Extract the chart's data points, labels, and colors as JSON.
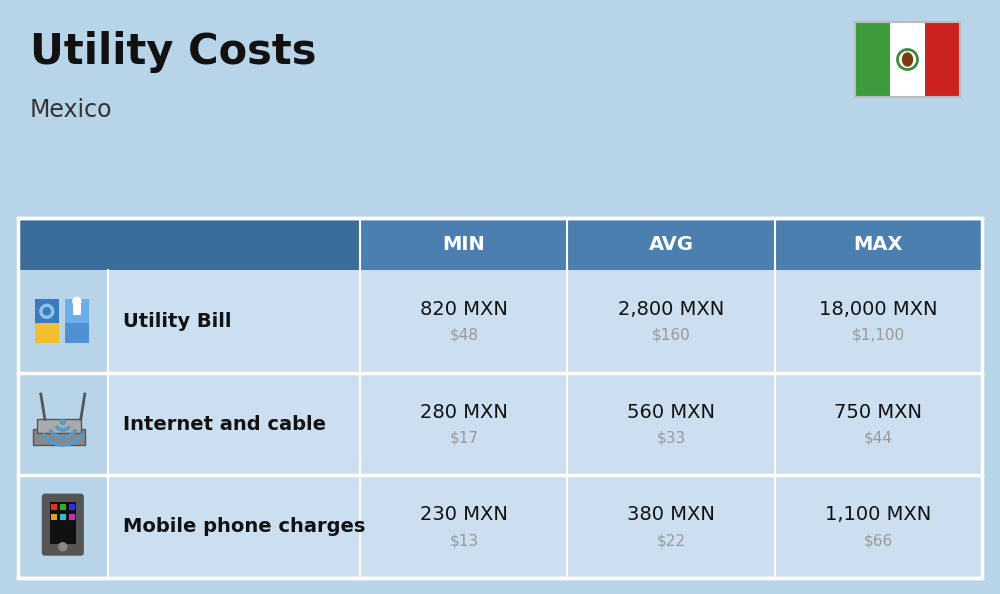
{
  "title": "Utility Costs",
  "subtitle": "Mexico",
  "background_color": "#b8d4e8",
  "table_header_bg": "#4a7faf",
  "table_header_text": "#ffffff",
  "table_row_bg": "#ccdff0",
  "table_border_color": "#ffffff",
  "icon_col_bg": "#b8d4e8",
  "headers": [
    "MIN",
    "AVG",
    "MAX"
  ],
  "rows": [
    {
      "label": "Utility Bill",
      "min_mxn": "820 MXN",
      "min_usd": "$48",
      "avg_mxn": "2,800 MXN",
      "avg_usd": "$160",
      "max_mxn": "18,000 MXN",
      "max_usd": "$1,100"
    },
    {
      "label": "Internet and cable",
      "min_mxn": "280 MXN",
      "min_usd": "$17",
      "avg_mxn": "560 MXN",
      "avg_usd": "$33",
      "max_mxn": "750 MXN",
      "max_usd": "$44"
    },
    {
      "label": "Mobile phone charges",
      "min_mxn": "230 MXN",
      "min_usd": "$13",
      "avg_mxn": "380 MXN",
      "avg_usd": "$22",
      "max_mxn": "1,100 MXN",
      "max_usd": "$66"
    }
  ],
  "title_fontsize": 30,
  "subtitle_fontsize": 17,
  "header_fontsize": 14,
  "label_fontsize": 14,
  "value_fontsize": 14,
  "usd_fontsize": 11,
  "usd_color": "#999999",
  "flag_green": "#3d9b3d",
  "flag_white": "#ffffff",
  "flag_red": "#cc2222"
}
